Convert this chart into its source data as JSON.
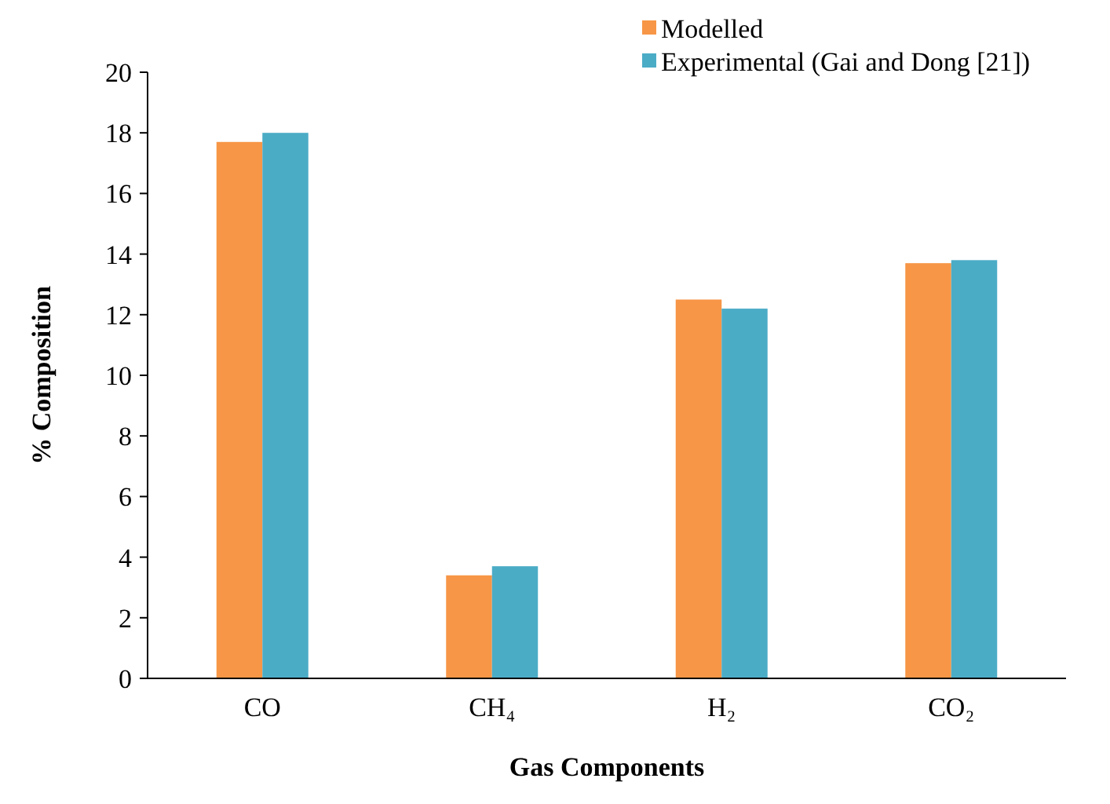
{
  "chart_data": {
    "type": "bar",
    "xlabel": "Gas Components",
    "ylabel": "% Composition",
    "categories": [
      "CO",
      "CH₄",
      "H₂",
      "CO₂"
    ],
    "series": [
      {
        "name": "Modelled",
        "color": "#f79646",
        "values": [
          17.7,
          3.4,
          12.5,
          13.7
        ]
      },
      {
        "name": "Experimental (Gai and Dong [21])",
        "color": "#4bacc6",
        "values": [
          18.0,
          3.7,
          12.2,
          13.8
        ]
      }
    ],
    "ylim": [
      0,
      20
    ],
    "yticks": [
      0,
      2,
      4,
      6,
      8,
      10,
      12,
      14,
      16,
      18,
      20
    ],
    "grid": false,
    "legend": "top right"
  }
}
